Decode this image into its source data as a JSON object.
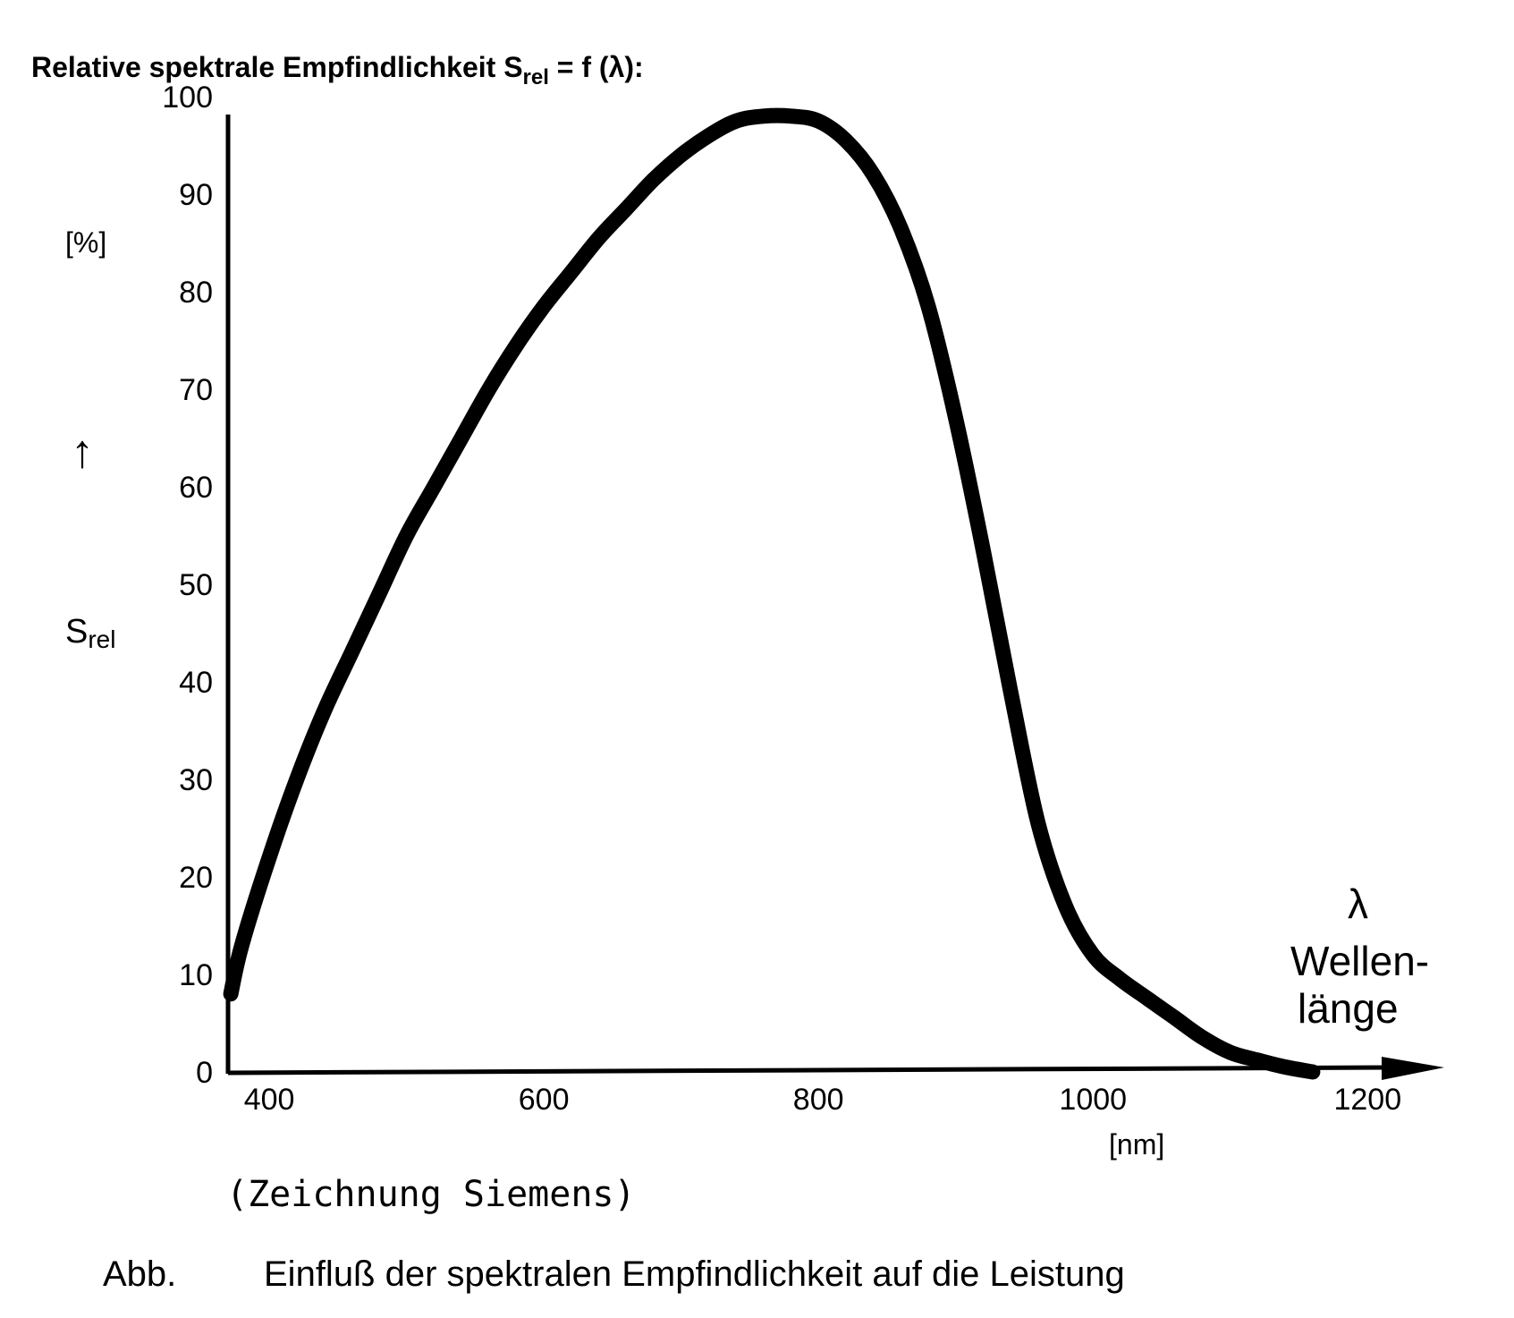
{
  "chart_data": {
    "type": "line",
    "title": {
      "prefix": "Relative spektrale Empfindlichkeit S",
      "subscript": "rel",
      "suffix": " = f (λ):"
    },
    "ylabel": {
      "unit": "[%]",
      "arrow": "↑",
      "symbol": "S",
      "symbol_sub": "rel"
    },
    "xlabel": {
      "symbol": "λ",
      "line1": "Wellen-",
      "line2": "länge",
      "unit": "[nm]"
    },
    "xlim": [
      370,
      1220
    ],
    "ylim": [
      0,
      100
    ],
    "x_ticks": [
      "400",
      "600",
      "800",
      "1000",
      "1200"
    ],
    "y_ticks": [
      "0",
      "10",
      "20",
      "30",
      "40",
      "50",
      "60",
      "70",
      "80",
      "90",
      "100"
    ],
    "grid": false,
    "series": [
      {
        "x": [
          372,
          380,
          400,
          420,
          440,
          460,
          480,
          500,
          520,
          540,
          560,
          580,
          600,
          620,
          640,
          660,
          680,
          700,
          720,
          740,
          760,
          780,
          800,
          820,
          840,
          860,
          880,
          900,
          920,
          940,
          960,
          980,
          1000,
          1020,
          1040,
          1060,
          1080,
          1100,
          1120,
          1140,
          1160
        ],
        "y": [
          8,
          13,
          22,
          30,
          37,
          43,
          49,
          55,
          60,
          65,
          70,
          74.5,
          78.5,
          82,
          85.5,
          88.5,
          91.5,
          94,
          96,
          97.5,
          98,
          98,
          97.5,
          95.5,
          92,
          86.5,
          78.5,
          67,
          53.5,
          39,
          25.5,
          17,
          12,
          9.5,
          7.5,
          5.5,
          3.5,
          2,
          1.2,
          0.5,
          0
        ]
      }
    ]
  },
  "credit": "(Zeichnung Siemens)",
  "caption": {
    "label": "Abb.",
    "text": "Einfluß der spektralen Empfindlichkeit auf die Leistung"
  }
}
